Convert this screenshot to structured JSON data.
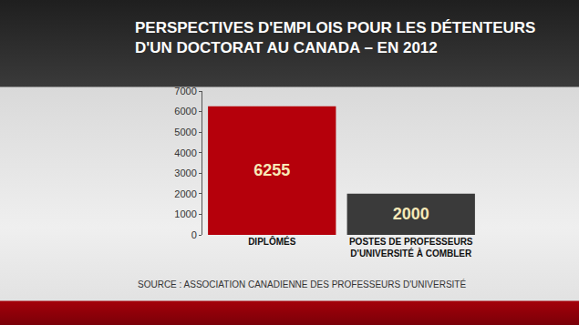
{
  "chart_data": {
    "type": "bar",
    "title": "PERSPECTIVES D'EMPLOIS POUR LES DÉTENTEURS\nD'UN DOCTORAT AU CANADA – EN 2012",
    "categories": [
      "DIPLÔMÉS",
      "POSTES DE PROFESSEURS\nD'UNIVERSITÉ À COMBLER"
    ],
    "values": [
      6255,
      2000
    ],
    "colors": [
      "#b5000b",
      "#3a3a3a"
    ],
    "ylim": [
      0,
      7000
    ],
    "yticks": [
      0,
      1000,
      2000,
      3000,
      4000,
      5000,
      6000,
      7000
    ],
    "grid": false,
    "data_labels": true,
    "source": "SOURCE : ASSOCIATION CANADIENNE DES PROFESSEURS D'UNIVERSITÉ"
  }
}
